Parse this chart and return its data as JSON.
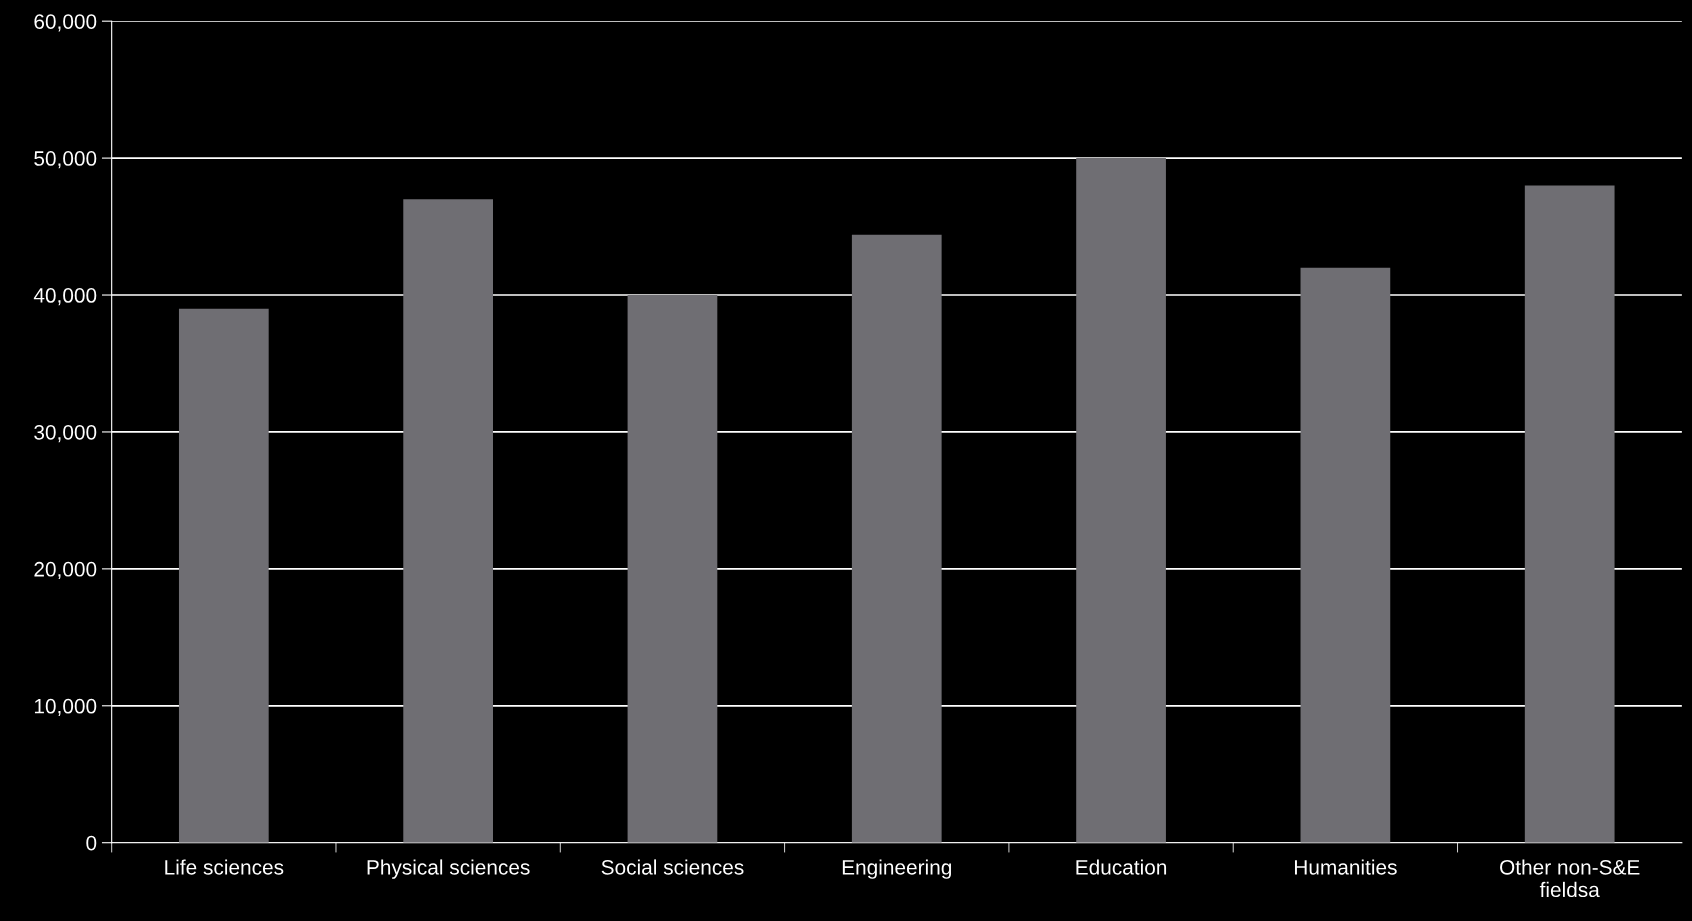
{
  "chart_data": {
    "type": "bar",
    "categories": [
      "Life sciences",
      "Physical sciences",
      "Social sciences",
      "Engineering",
      "Education",
      "Humanities",
      "Other non-S&E fieldsa"
    ],
    "values": [
      39000,
      47000,
      40000,
      44400,
      50000,
      42000,
      48000
    ],
    "color": "#6f6e73",
    "ylim": [
      0,
      60000
    ],
    "yticks": [
      {
        "value": 0,
        "label": "0"
      },
      {
        "value": 10000,
        "label": "10,000"
      },
      {
        "value": 20000,
        "label": "20,000"
      },
      {
        "value": 30000,
        "label": "30,000"
      },
      {
        "value": 40000,
        "label": "40,000"
      },
      {
        "value": 50000,
        "label": "50,000"
      },
      {
        "value": 60000,
        "label": "60,000"
      }
    ],
    "grid": "y",
    "legend": false
  }
}
